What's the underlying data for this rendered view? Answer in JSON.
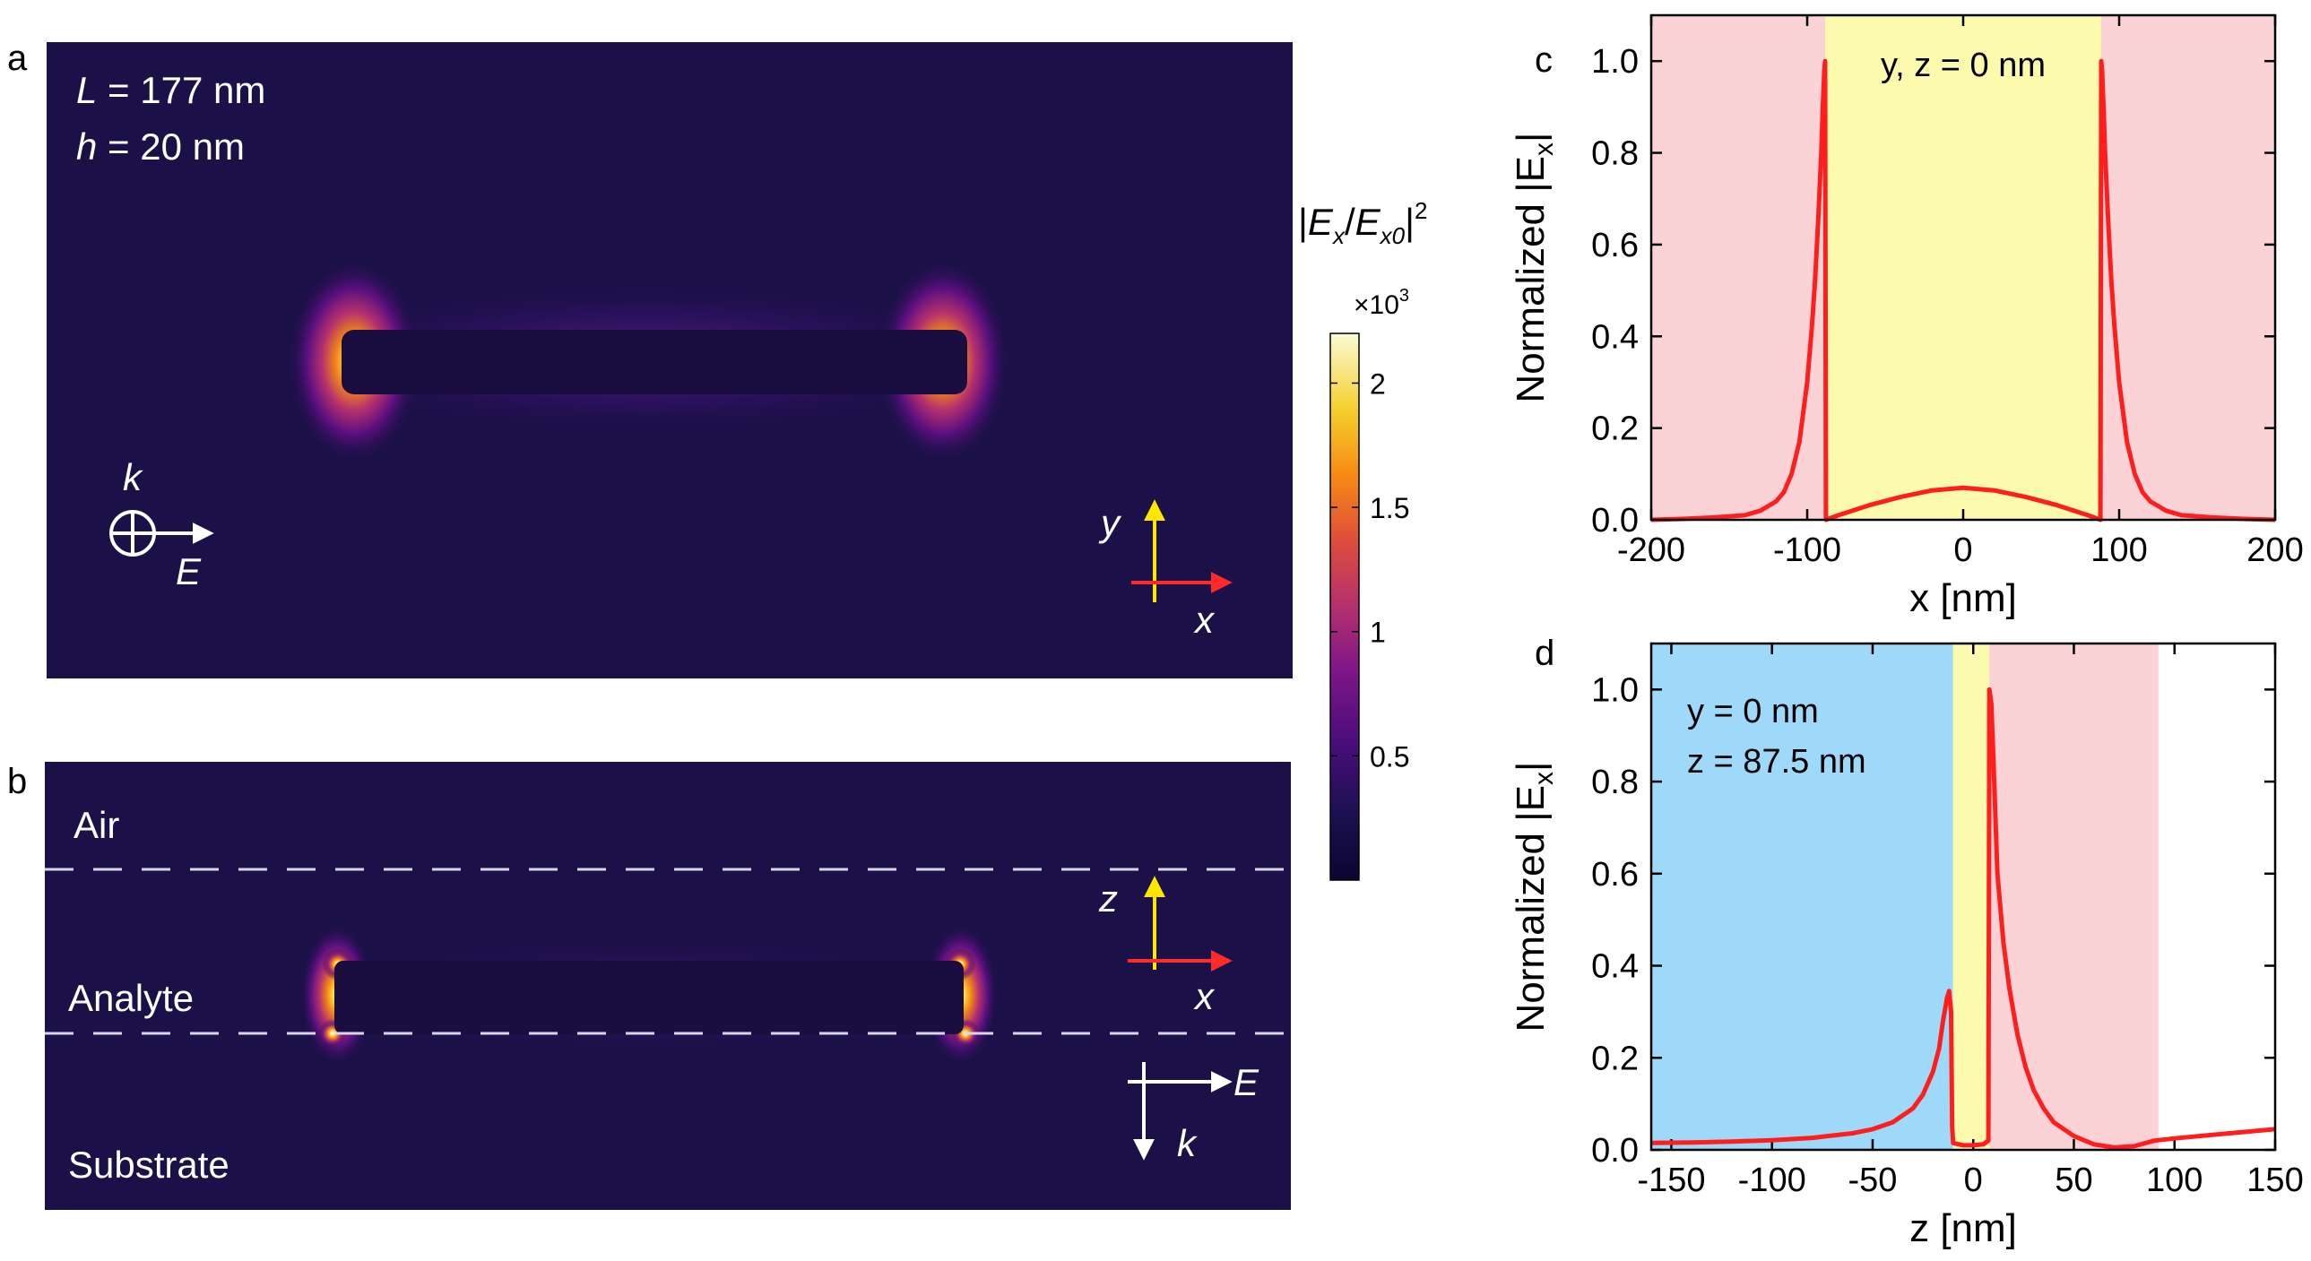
{
  "colors": {
    "field_bg": "#1b1048",
    "red_curve": "#ff1e1e",
    "pink_region": "#fbd2d5",
    "yellow_region": "#fbfaad",
    "blue_region": "#9fd9fa",
    "white_label": "#ffffff",
    "yellow_arrow": "#ffe600",
    "red_arrow": "#ff2a2a"
  },
  "panel_a": {
    "letter": "a",
    "L_var": "L",
    "L_value": " = 177 nm",
    "h_var": "h",
    "h_value": " = 20 nm",
    "k_label": "k",
    "E_label": "E",
    "y_label": "y",
    "x_label": "x"
  },
  "panel_b": {
    "letter": "b",
    "air": "Air",
    "analyte": "Analyte",
    "substrate": "Substrate",
    "z_label": "z",
    "x_label": "x",
    "E_label": "E",
    "k_label": "k"
  },
  "colorbar": {
    "title_open": "|",
    "title_E": "E",
    "title_x": "x",
    "title_slash": "/",
    "title_E0": "E",
    "title_x0": "x0",
    "title_close": "|",
    "title_sup": "2",
    "multiplier": "×10",
    "multiplier_exp": "3",
    "ticks": [
      {
        "value": 0.5,
        "label": "0.5"
      },
      {
        "value": 1.0,
        "label": "1"
      },
      {
        "value": 1.5,
        "label": "1.5"
      },
      {
        "value": 2.0,
        "label": "2"
      }
    ],
    "range": [
      0,
      2.2
    ]
  },
  "chart_data": [
    {
      "id": "c",
      "type": "line",
      "letter": "c",
      "annotation": "y, z = 0 nm",
      "xlabel": "x [nm]",
      "ylabel_main": "Normalized |E",
      "ylabel_sub": "x",
      "ylabel_close": "|",
      "xlim": [
        -200,
        200
      ],
      "ylim": [
        0,
        1.1
      ],
      "xticks": [
        -200,
        -100,
        0,
        100,
        200
      ],
      "yticks": [
        0.0,
        0.2,
        0.4,
        0.6,
        0.8,
        1.0
      ],
      "ytick_labels": [
        "0.0",
        "0.2",
        "0.4",
        "0.6",
        "0.8",
        "1.0"
      ],
      "regions": [
        {
          "from": -200,
          "to": -88.5,
          "color": "pink"
        },
        {
          "from": -88.5,
          "to": 88.5,
          "color": "yellow"
        },
        {
          "from": 88.5,
          "to": 200,
          "color": "pink"
        }
      ],
      "series": [
        {
          "name": "Normalized |Ex|",
          "x": [
            -200,
            -180,
            -160,
            -140,
            -130,
            -120,
            -115,
            -110,
            -105,
            -100,
            -97,
            -95,
            -93,
            -91,
            -90,
            -89,
            -88.5,
            -88,
            -80,
            -60,
            -40,
            -20,
            0,
            20,
            40,
            60,
            80,
            88,
            88.5,
            89,
            90,
            91,
            93,
            95,
            97,
            100,
            105,
            110,
            115,
            120,
            130,
            140,
            160,
            180,
            200
          ],
          "y": [
            0.0,
            0.002,
            0.005,
            0.01,
            0.02,
            0.04,
            0.06,
            0.1,
            0.17,
            0.3,
            0.42,
            0.52,
            0.65,
            0.8,
            0.9,
            0.98,
            1.0,
            0.0,
            0.01,
            0.032,
            0.05,
            0.064,
            0.07,
            0.064,
            0.05,
            0.032,
            0.01,
            0.0,
            1.0,
            0.98,
            0.9,
            0.8,
            0.65,
            0.52,
            0.42,
            0.3,
            0.17,
            0.1,
            0.06,
            0.04,
            0.02,
            0.01,
            0.005,
            0.002,
            0.0
          ]
        }
      ]
    },
    {
      "id": "d",
      "type": "line",
      "letter": "d",
      "annotation_line1": "y = 0 nm",
      "annotation_line2": "z = 87.5 nm",
      "xlabel": "z [nm]",
      "ylabel_main": "Normalized |E",
      "ylabel_sub": "x",
      "ylabel_close": "|",
      "xlim": [
        -160,
        150
      ],
      "ylim": [
        0,
        1.1
      ],
      "xticks": [
        -150,
        -100,
        -50,
        0,
        50,
        100,
        150
      ],
      "yticks": [
        0.0,
        0.2,
        0.4,
        0.6,
        0.8,
        1.0
      ],
      "ytick_labels": [
        "0.0",
        "0.2",
        "0.4",
        "0.6",
        "0.8",
        "1.0"
      ],
      "regions": [
        {
          "from": -160,
          "to": -10,
          "color": "blue"
        },
        {
          "from": -10,
          "to": 8,
          "color": "yellow"
        },
        {
          "from": 8,
          "to": 92,
          "color": "pink"
        }
      ],
      "series": [
        {
          "name": "Normalized |Ex|",
          "x": [
            -160,
            -140,
            -120,
            -100,
            -80,
            -60,
            -50,
            -40,
            -30,
            -25,
            -20,
            -17,
            -15,
            -13,
            -12,
            -11,
            -10.5,
            -10,
            -5,
            0,
            5,
            7.5,
            8,
            9,
            10,
            12,
            15,
            18,
            22,
            26,
            30,
            35,
            40,
            50,
            60,
            70,
            80,
            90,
            100,
            120,
            150
          ],
          "y": [
            0.015,
            0.016,
            0.018,
            0.021,
            0.026,
            0.036,
            0.045,
            0.06,
            0.09,
            0.12,
            0.17,
            0.22,
            0.28,
            0.33,
            0.345,
            0.3,
            0.05,
            0.015,
            0.01,
            0.01,
            0.012,
            0.02,
            1.0,
            0.97,
            0.85,
            0.6,
            0.45,
            0.35,
            0.25,
            0.18,
            0.13,
            0.09,
            0.06,
            0.03,
            0.012,
            0.005,
            0.008,
            0.02,
            0.025,
            0.033,
            0.045
          ]
        }
      ]
    }
  ]
}
